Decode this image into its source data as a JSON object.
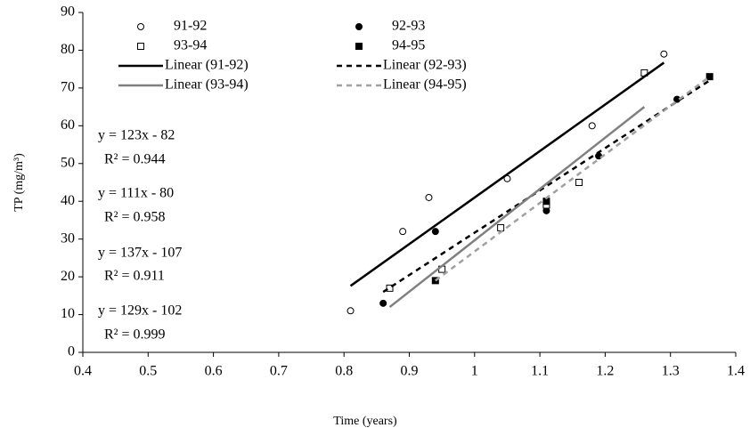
{
  "chart_data": {
    "type": "scatter",
    "x_label": "Time (years)",
    "y_label": "TP (mg/m³)",
    "xlim": [
      0.4,
      1.4
    ],
    "xticks": [
      0.4,
      0.5,
      0.6,
      0.7,
      0.8,
      0.9,
      1,
      1.1,
      1.2,
      1.3,
      1.4
    ],
    "ylim": [
      0,
      90
    ],
    "yticks": [
      0,
      10,
      20,
      30,
      40,
      50,
      60,
      70,
      80,
      90
    ],
    "grid": false,
    "legend": "top",
    "series": [
      {
        "name": "91-92",
        "color": "#000000",
        "marker": "circle",
        "filled": false,
        "x": [
          0.81,
          0.89,
          0.93,
          1.05,
          1.18,
          1.29
        ],
        "values": [
          11,
          32,
          41,
          46,
          60,
          79
        ]
      },
      {
        "name": "92-93",
        "color": "#000000",
        "marker": "circle",
        "filled": true,
        "x": [
          0.86,
          0.94,
          1.11,
          1.19,
          1.31
        ],
        "values": [
          13,
          32,
          37.5,
          52,
          67
        ]
      },
      {
        "name": "93-94",
        "color": "#000000",
        "marker": "square",
        "filled": false,
        "x": [
          0.87,
          0.95,
          1.04,
          1.11,
          1.16,
          1.26
        ],
        "values": [
          17,
          22,
          33,
          39,
          45,
          74
        ]
      },
      {
        "name": "94-95",
        "color": "#000000",
        "marker": "square",
        "filled": true,
        "x": [
          0.94,
          1.11,
          1.36
        ],
        "values": [
          19,
          40,
          73
        ]
      },
      {
        "name": "Linear (91-92)",
        "color": "#000000",
        "dashed": false,
        "x": [
          0.81,
          1.29
        ],
        "values": [
          17.6,
          76.7
        ]
      },
      {
        "name": "Linear (92-93)",
        "color": "#000000",
        "dashed": true,
        "x": [
          0.86,
          1.36
        ],
        "values": [
          16,
          72
        ]
      },
      {
        "name": "Linear (93-94)",
        "color": "#808080",
        "dashed": false,
        "x": [
          0.87,
          1.26
        ],
        "values": [
          12,
          65
        ]
      },
      {
        "name": "Linear (94-95)",
        "color": "#a0a0a0",
        "dashed": true,
        "x": [
          0.94,
          1.36
        ],
        "values": [
          19,
          73
        ]
      }
    ],
    "annotations": [
      "y = 123x - 82",
      "R² = 0.944",
      "y = 111x - 80",
      "R² = 0.958",
      "y = 137x - 107",
      "R² = 0.911",
      "y = 129x - 102",
      "R² = 0.999"
    ]
  }
}
